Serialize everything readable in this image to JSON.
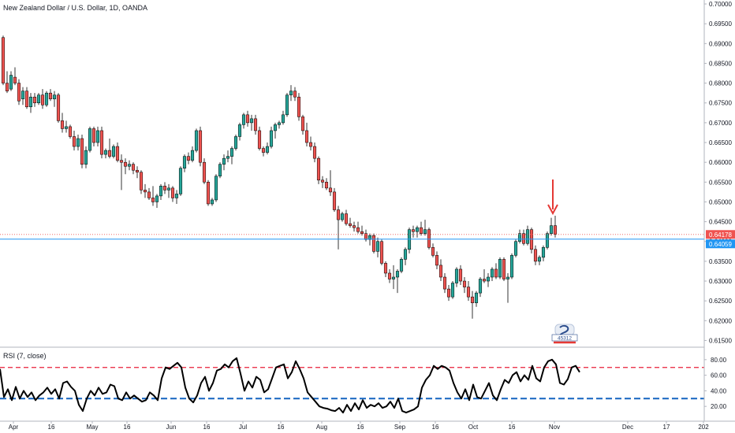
{
  "header": {
    "title": "New Zealand Dollar / U.S. Dollar, 1D, OANDA"
  },
  "rsi_header": {
    "label": "RSI (7, close)"
  },
  "price_tags": {
    "last": "0.64178",
    "level": "0.64059"
  },
  "watermark": {
    "text": "45312"
  },
  "colors": {
    "up": "#26a69a",
    "down": "#ef5350",
    "candle_border": "#000000",
    "rsi_line": "#000000",
    "rsi_upper": "#e91e37",
    "rsi_lower": "#1565c0",
    "last_tag": "#ef5350",
    "level_tag": "#2196f3",
    "arrow": "#e53935"
  },
  "chart_data": [
    {
      "type": "candlestick",
      "title": "New Zealand Dollar / U.S. Dollar, 1D, OANDA",
      "price_axis": [
        "0.70000",
        "0.69500",
        "0.69000",
        "0.68500",
        "0.68000",
        "0.67500",
        "0.67000",
        "0.66500",
        "0.66000",
        "0.65500",
        "0.65000",
        "0.64500",
        "0.64000",
        "0.63500",
        "0.63000",
        "0.62500",
        "0.62000",
        "0.61500"
      ],
      "time_axis": [
        "Apr",
        "16",
        "May",
        "16",
        "Jun",
        "16",
        "Jul",
        "16",
        "Aug",
        "16",
        "Sep",
        "16",
        "Oct",
        "16",
        "Nov",
        "Dec",
        "17",
        "202"
      ],
      "ylim": [
        0.6135,
        0.701
      ],
      "last_price": 0.64178,
      "horizontal_level": 0.64059,
      "annotation": "red down arrow above latest candles",
      "candles": [
        {
          "o": 0.6915,
          "h": 0.692,
          "l": 0.6795,
          "c": 0.68
        },
        {
          "o": 0.68,
          "h": 0.683,
          "l": 0.6775,
          "c": 0.678
        },
        {
          "o": 0.6785,
          "h": 0.683,
          "l": 0.678,
          "c": 0.682
        },
        {
          "o": 0.6815,
          "h": 0.684,
          "l": 0.6795,
          "c": 0.68
        },
        {
          "o": 0.68,
          "h": 0.681,
          "l": 0.6745,
          "c": 0.6755
        },
        {
          "o": 0.676,
          "h": 0.679,
          "l": 0.6745,
          "c": 0.678
        },
        {
          "o": 0.678,
          "h": 0.679,
          "l": 0.6735,
          "c": 0.674
        },
        {
          "o": 0.674,
          "h": 0.6775,
          "l": 0.6725,
          "c": 0.6765
        },
        {
          "o": 0.6765,
          "h": 0.6775,
          "l": 0.674,
          "c": 0.675
        },
        {
          "o": 0.675,
          "h": 0.6775,
          "l": 0.6745,
          "c": 0.677
        },
        {
          "o": 0.677,
          "h": 0.6785,
          "l": 0.6735,
          "c": 0.6745
        },
        {
          "o": 0.6745,
          "h": 0.678,
          "l": 0.674,
          "c": 0.6775
        },
        {
          "o": 0.6775,
          "h": 0.6785,
          "l": 0.6755,
          "c": 0.676
        },
        {
          "o": 0.676,
          "h": 0.678,
          "l": 0.674,
          "c": 0.677
        },
        {
          "o": 0.677,
          "h": 0.6775,
          "l": 0.67,
          "c": 0.6705
        },
        {
          "o": 0.6705,
          "h": 0.6725,
          "l": 0.6675,
          "c": 0.6685
        },
        {
          "o": 0.6685,
          "h": 0.6705,
          "l": 0.6675,
          "c": 0.669
        },
        {
          "o": 0.669,
          "h": 0.6695,
          "l": 0.666,
          "c": 0.6665
        },
        {
          "o": 0.6665,
          "h": 0.668,
          "l": 0.663,
          "c": 0.664
        },
        {
          "o": 0.664,
          "h": 0.667,
          "l": 0.663,
          "c": 0.666
        },
        {
          "o": 0.666,
          "h": 0.667,
          "l": 0.6585,
          "c": 0.6595
        },
        {
          "o": 0.6595,
          "h": 0.664,
          "l": 0.6585,
          "c": 0.663
        },
        {
          "o": 0.663,
          "h": 0.669,
          "l": 0.6625,
          "c": 0.6685
        },
        {
          "o": 0.6685,
          "h": 0.669,
          "l": 0.664,
          "c": 0.665
        },
        {
          "o": 0.665,
          "h": 0.669,
          "l": 0.664,
          "c": 0.668
        },
        {
          "o": 0.668,
          "h": 0.669,
          "l": 0.661,
          "c": 0.662
        },
        {
          "o": 0.662,
          "h": 0.6635,
          "l": 0.661,
          "c": 0.663
        },
        {
          "o": 0.663,
          "h": 0.666,
          "l": 0.661,
          "c": 0.6615
        },
        {
          "o": 0.6615,
          "h": 0.6645,
          "l": 0.661,
          "c": 0.664
        },
        {
          "o": 0.664,
          "h": 0.665,
          "l": 0.66,
          "c": 0.6605
        },
        {
          "o": 0.6605,
          "h": 0.662,
          "l": 0.653,
          "c": 0.66
        },
        {
          "o": 0.66,
          "h": 0.661,
          "l": 0.657,
          "c": 0.659
        },
        {
          "o": 0.659,
          "h": 0.6605,
          "l": 0.658,
          "c": 0.6595
        },
        {
          "o": 0.6595,
          "h": 0.66,
          "l": 0.657,
          "c": 0.658
        },
        {
          "o": 0.658,
          "h": 0.659,
          "l": 0.656,
          "c": 0.6575
        },
        {
          "o": 0.6575,
          "h": 0.658,
          "l": 0.652,
          "c": 0.653
        },
        {
          "o": 0.653,
          "h": 0.6545,
          "l": 0.651,
          "c": 0.6525
        },
        {
          "o": 0.6525,
          "h": 0.6535,
          "l": 0.6505,
          "c": 0.651
        },
        {
          "o": 0.651,
          "h": 0.654,
          "l": 0.649,
          "c": 0.65
        },
        {
          "o": 0.65,
          "h": 0.652,
          "l": 0.6485,
          "c": 0.6515
        },
        {
          "o": 0.6515,
          "h": 0.6545,
          "l": 0.6505,
          "c": 0.654
        },
        {
          "o": 0.654,
          "h": 0.655,
          "l": 0.652,
          "c": 0.653
        },
        {
          "o": 0.653,
          "h": 0.6545,
          "l": 0.651,
          "c": 0.6535
        },
        {
          "o": 0.6535,
          "h": 0.654,
          "l": 0.65,
          "c": 0.651
        },
        {
          "o": 0.651,
          "h": 0.653,
          "l": 0.6495,
          "c": 0.652
        },
        {
          "o": 0.652,
          "h": 0.659,
          "l": 0.6515,
          "c": 0.6585
        },
        {
          "o": 0.6585,
          "h": 0.662,
          "l": 0.6575,
          "c": 0.6615
        },
        {
          "o": 0.6615,
          "h": 0.6625,
          "l": 0.6595,
          "c": 0.6605
        },
        {
          "o": 0.6605,
          "h": 0.664,
          "l": 0.66,
          "c": 0.663
        },
        {
          "o": 0.663,
          "h": 0.6685,
          "l": 0.6625,
          "c": 0.668
        },
        {
          "o": 0.668,
          "h": 0.669,
          "l": 0.659,
          "c": 0.66
        },
        {
          "o": 0.66,
          "h": 0.661,
          "l": 0.6545,
          "c": 0.655
        },
        {
          "o": 0.655,
          "h": 0.6555,
          "l": 0.649,
          "c": 0.6495
        },
        {
          "o": 0.6495,
          "h": 0.651,
          "l": 0.649,
          "c": 0.6505
        },
        {
          "o": 0.6505,
          "h": 0.657,
          "l": 0.65,
          "c": 0.6565
        },
        {
          "o": 0.6565,
          "h": 0.66,
          "l": 0.656,
          "c": 0.6595
        },
        {
          "o": 0.6595,
          "h": 0.662,
          "l": 0.658,
          "c": 0.661
        },
        {
          "o": 0.661,
          "h": 0.663,
          "l": 0.66,
          "c": 0.6615
        },
        {
          "o": 0.6615,
          "h": 0.664,
          "l": 0.6595,
          "c": 0.6635
        },
        {
          "o": 0.6635,
          "h": 0.667,
          "l": 0.663,
          "c": 0.6665
        },
        {
          "o": 0.6665,
          "h": 0.67,
          "l": 0.6655,
          "c": 0.6695
        },
        {
          "o": 0.6695,
          "h": 0.6725,
          "l": 0.6685,
          "c": 0.672
        },
        {
          "o": 0.672,
          "h": 0.673,
          "l": 0.669,
          "c": 0.67
        },
        {
          "o": 0.67,
          "h": 0.672,
          "l": 0.668,
          "c": 0.671
        },
        {
          "o": 0.671,
          "h": 0.672,
          "l": 0.667,
          "c": 0.668
        },
        {
          "o": 0.668,
          "h": 0.669,
          "l": 0.663,
          "c": 0.6635
        },
        {
          "o": 0.6635,
          "h": 0.664,
          "l": 0.6615,
          "c": 0.6625
        },
        {
          "o": 0.6625,
          "h": 0.665,
          "l": 0.662,
          "c": 0.664
        },
        {
          "o": 0.664,
          "h": 0.669,
          "l": 0.6635,
          "c": 0.668
        },
        {
          "o": 0.668,
          "h": 0.67,
          "l": 0.666,
          "c": 0.6695
        },
        {
          "o": 0.6695,
          "h": 0.6705,
          "l": 0.6685,
          "c": 0.67
        },
        {
          "o": 0.67,
          "h": 0.673,
          "l": 0.6695,
          "c": 0.672
        },
        {
          "o": 0.672,
          "h": 0.6775,
          "l": 0.6715,
          "c": 0.677
        },
        {
          "o": 0.677,
          "h": 0.6795,
          "l": 0.6755,
          "c": 0.678
        },
        {
          "o": 0.678,
          "h": 0.679,
          "l": 0.6755,
          "c": 0.6765
        },
        {
          "o": 0.6765,
          "h": 0.6775,
          "l": 0.6705,
          "c": 0.6715
        },
        {
          "o": 0.6715,
          "h": 0.672,
          "l": 0.667,
          "c": 0.668
        },
        {
          "o": 0.668,
          "h": 0.67,
          "l": 0.664,
          "c": 0.665
        },
        {
          "o": 0.665,
          "h": 0.6665,
          "l": 0.663,
          "c": 0.664
        },
        {
          "o": 0.664,
          "h": 0.665,
          "l": 0.66,
          "c": 0.661
        },
        {
          "o": 0.661,
          "h": 0.6615,
          "l": 0.6545,
          "c": 0.6555
        },
        {
          "o": 0.6555,
          "h": 0.6565,
          "l": 0.6535,
          "c": 0.655
        },
        {
          "o": 0.655,
          "h": 0.656,
          "l": 0.653,
          "c": 0.6535
        },
        {
          "o": 0.6535,
          "h": 0.658,
          "l": 0.6515,
          "c": 0.6525
        },
        {
          "o": 0.6525,
          "h": 0.6535,
          "l": 0.6475,
          "c": 0.648
        },
        {
          "o": 0.648,
          "h": 0.649,
          "l": 0.638,
          "c": 0.6455
        },
        {
          "o": 0.6455,
          "h": 0.6475,
          "l": 0.645,
          "c": 0.647
        },
        {
          "o": 0.647,
          "h": 0.648,
          "l": 0.644,
          "c": 0.6445
        },
        {
          "o": 0.6445,
          "h": 0.646,
          "l": 0.6435,
          "c": 0.644
        },
        {
          "o": 0.644,
          "h": 0.645,
          "l": 0.6425,
          "c": 0.6435
        },
        {
          "o": 0.6435,
          "h": 0.645,
          "l": 0.642,
          "c": 0.6425
        },
        {
          "o": 0.6425,
          "h": 0.644,
          "l": 0.6415,
          "c": 0.642
        },
        {
          "o": 0.642,
          "h": 0.643,
          "l": 0.64,
          "c": 0.6405
        },
        {
          "o": 0.6405,
          "h": 0.642,
          "l": 0.639,
          "c": 0.6415
        },
        {
          "o": 0.6415,
          "h": 0.642,
          "l": 0.637,
          "c": 0.6375
        },
        {
          "o": 0.6375,
          "h": 0.641,
          "l": 0.636,
          "c": 0.64
        },
        {
          "o": 0.64,
          "h": 0.6405,
          "l": 0.634,
          "c": 0.6345
        },
        {
          "o": 0.6345,
          "h": 0.635,
          "l": 0.631,
          "c": 0.632
        },
        {
          "o": 0.632,
          "h": 0.633,
          "l": 0.6295,
          "c": 0.6305
        },
        {
          "o": 0.6305,
          "h": 0.634,
          "l": 0.628,
          "c": 0.631
        },
        {
          "o": 0.631,
          "h": 0.633,
          "l": 0.627,
          "c": 0.6325
        },
        {
          "o": 0.6325,
          "h": 0.636,
          "l": 0.632,
          "c": 0.6355
        },
        {
          "o": 0.6355,
          "h": 0.6385,
          "l": 0.634,
          "c": 0.638
        },
        {
          "o": 0.638,
          "h": 0.6435,
          "l": 0.637,
          "c": 0.643
        },
        {
          "o": 0.643,
          "h": 0.644,
          "l": 0.641,
          "c": 0.6425
        },
        {
          "o": 0.6425,
          "h": 0.644,
          "l": 0.641,
          "c": 0.6435
        },
        {
          "o": 0.6435,
          "h": 0.645,
          "l": 0.6415,
          "c": 0.642
        },
        {
          "o": 0.642,
          "h": 0.6455,
          "l": 0.6415,
          "c": 0.643
        },
        {
          "o": 0.643,
          "h": 0.6435,
          "l": 0.638,
          "c": 0.6385
        },
        {
          "o": 0.6385,
          "h": 0.6395,
          "l": 0.636,
          "c": 0.6365
        },
        {
          "o": 0.6365,
          "h": 0.6375,
          "l": 0.633,
          "c": 0.634
        },
        {
          "o": 0.634,
          "h": 0.6355,
          "l": 0.63,
          "c": 0.631
        },
        {
          "o": 0.631,
          "h": 0.632,
          "l": 0.627,
          "c": 0.628
        },
        {
          "o": 0.628,
          "h": 0.629,
          "l": 0.625,
          "c": 0.626
        },
        {
          "o": 0.626,
          "h": 0.63,
          "l": 0.6255,
          "c": 0.6295
        },
        {
          "o": 0.6295,
          "h": 0.6335,
          "l": 0.6285,
          "c": 0.633
        },
        {
          "o": 0.633,
          "h": 0.634,
          "l": 0.629,
          "c": 0.63
        },
        {
          "o": 0.63,
          "h": 0.631,
          "l": 0.627,
          "c": 0.6285
        },
        {
          "o": 0.6285,
          "h": 0.63,
          "l": 0.625,
          "c": 0.626
        },
        {
          "o": 0.626,
          "h": 0.6275,
          "l": 0.6205,
          "c": 0.6245
        },
        {
          "o": 0.6245,
          "h": 0.6275,
          "l": 0.6235,
          "c": 0.627
        },
        {
          "o": 0.627,
          "h": 0.631,
          "l": 0.626,
          "c": 0.6305
        },
        {
          "o": 0.6305,
          "h": 0.633,
          "l": 0.6295,
          "c": 0.63
        },
        {
          "o": 0.63,
          "h": 0.632,
          "l": 0.6285,
          "c": 0.631
        },
        {
          "o": 0.631,
          "h": 0.6335,
          "l": 0.63,
          "c": 0.633
        },
        {
          "o": 0.633,
          "h": 0.6345,
          "l": 0.6305,
          "c": 0.631
        },
        {
          "o": 0.631,
          "h": 0.636,
          "l": 0.6305,
          "c": 0.6355
        },
        {
          "o": 0.6355,
          "h": 0.636,
          "l": 0.63,
          "c": 0.6305
        },
        {
          "o": 0.6305,
          "h": 0.632,
          "l": 0.6245,
          "c": 0.631
        },
        {
          "o": 0.631,
          "h": 0.637,
          "l": 0.6305,
          "c": 0.6365
        },
        {
          "o": 0.6365,
          "h": 0.6405,
          "l": 0.636,
          "c": 0.64
        },
        {
          "o": 0.64,
          "h": 0.643,
          "l": 0.6395,
          "c": 0.642
        },
        {
          "o": 0.642,
          "h": 0.643,
          "l": 0.639,
          "c": 0.6395
        },
        {
          "o": 0.6395,
          "h": 0.644,
          "l": 0.639,
          "c": 0.643
        },
        {
          "o": 0.643,
          "h": 0.6435,
          "l": 0.637,
          "c": 0.638
        },
        {
          "o": 0.638,
          "h": 0.639,
          "l": 0.634,
          "c": 0.635
        },
        {
          "o": 0.635,
          "h": 0.6365,
          "l": 0.634,
          "c": 0.636
        },
        {
          "o": 0.636,
          "h": 0.639,
          "l": 0.635,
          "c": 0.6385
        },
        {
          "o": 0.6385,
          "h": 0.6425,
          "l": 0.638,
          "c": 0.642
        },
        {
          "o": 0.642,
          "h": 0.646,
          "l": 0.6415,
          "c": 0.644
        },
        {
          "o": 0.644,
          "h": 0.6465,
          "l": 0.641,
          "c": 0.6418
        }
      ]
    },
    {
      "type": "line",
      "title": "RSI (7, close)",
      "y_axis": [
        "80.00",
        "60.00",
        "40.00",
        "20.00"
      ],
      "ylim": [
        5,
        95
      ],
      "levels": [
        70,
        30
      ],
      "values": [
        68,
        32,
        42,
        28,
        45,
        30,
        40,
        32,
        38,
        28,
        34,
        38,
        44,
        36,
        42,
        30,
        50,
        52,
        45,
        40,
        22,
        14,
        30,
        40,
        34,
        44,
        36,
        38,
        48,
        46,
        30,
        28,
        38,
        30,
        34,
        30,
        26,
        28,
        38,
        34,
        28,
        56,
        70,
        68,
        72,
        76,
        70,
        44,
        30,
        25,
        34,
        50,
        58,
        40,
        50,
        66,
        68,
        74,
        70,
        78,
        82,
        62,
        40,
        52,
        44,
        58,
        54,
        38,
        42,
        56,
        70,
        72,
        74,
        56,
        64,
        78,
        68,
        56,
        38,
        32,
        26,
        20,
        18,
        17,
        15,
        14,
        18,
        12,
        22,
        14,
        24,
        16,
        28,
        18,
        22,
        20,
        24,
        18,
        20,
        26,
        18,
        30,
        14,
        12,
        14,
        16,
        20,
        44,
        54,
        60,
        72,
        68,
        72,
        70,
        66,
        50,
        38,
        30,
        42,
        28,
        48,
        32,
        30,
        40,
        50,
        34,
        28,
        42,
        54,
        50,
        60,
        64,
        52,
        60,
        54,
        72,
        56,
        52,
        70,
        78,
        80,
        74,
        50,
        48,
        55,
        70,
        72,
        64
      ]
    }
  ]
}
